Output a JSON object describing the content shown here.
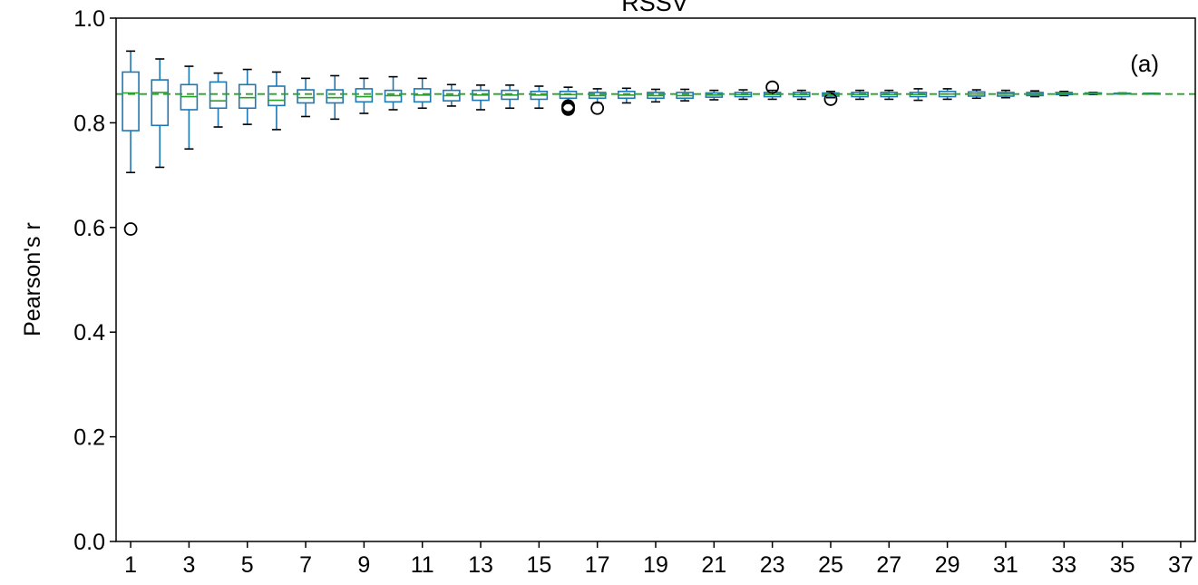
{
  "chart_data": {
    "type": "box",
    "title": "RSSV",
    "panel_label": "(a)",
    "xlabel": "",
    "ylabel": "Pearson's r",
    "ylim": [
      0.0,
      1.0
    ],
    "yticks": [
      "0.0",
      "0.2",
      "0.4",
      "0.6",
      "0.8",
      "1.0"
    ],
    "xlim": [
      0.5,
      37.5
    ],
    "xticks": [
      "1",
      "3",
      "5",
      "7",
      "9",
      "11",
      "13",
      "15",
      "17",
      "19",
      "21",
      "23",
      "25",
      "27",
      "29",
      "31",
      "33",
      "35",
      "37"
    ],
    "reference_line": {
      "value": 0.855,
      "style": "dashed",
      "color": "#2ca02c"
    },
    "box_color": "#1f77b4",
    "median_color": "#2ca02c",
    "whisker_color": "#000000",
    "grid": false,
    "boxes": [
      {
        "x": 1,
        "whislo": 0.705,
        "q1": 0.785,
        "med": 0.857,
        "q3": 0.897,
        "whishi": 0.937,
        "fliers": [
          0.597
        ]
      },
      {
        "x": 2,
        "whislo": 0.715,
        "q1": 0.795,
        "med": 0.858,
        "q3": 0.882,
        "whishi": 0.922,
        "fliers": []
      },
      {
        "x": 3,
        "whislo": 0.75,
        "q1": 0.825,
        "med": 0.85,
        "q3": 0.873,
        "whishi": 0.908,
        "fliers": []
      },
      {
        "x": 4,
        "whislo": 0.792,
        "q1": 0.828,
        "med": 0.842,
        "q3": 0.878,
        "whishi": 0.895,
        "fliers": []
      },
      {
        "x": 5,
        "whislo": 0.797,
        "q1": 0.828,
        "med": 0.848,
        "q3": 0.873,
        "whishi": 0.902,
        "fliers": []
      },
      {
        "x": 6,
        "whislo": 0.787,
        "q1": 0.833,
        "med": 0.843,
        "q3": 0.87,
        "whishi": 0.897,
        "fliers": []
      },
      {
        "x": 7,
        "whislo": 0.812,
        "q1": 0.838,
        "med": 0.848,
        "q3": 0.863,
        "whishi": 0.885,
        "fliers": []
      },
      {
        "x": 8,
        "whislo": 0.807,
        "q1": 0.838,
        "med": 0.848,
        "q3": 0.863,
        "whishi": 0.89,
        "fliers": []
      },
      {
        "x": 9,
        "whislo": 0.818,
        "q1": 0.84,
        "med": 0.85,
        "q3": 0.865,
        "whishi": 0.885,
        "fliers": []
      },
      {
        "x": 10,
        "whislo": 0.825,
        "q1": 0.84,
        "med": 0.852,
        "q3": 0.862,
        "whishi": 0.888,
        "fliers": []
      },
      {
        "x": 11,
        "whislo": 0.828,
        "q1": 0.84,
        "med": 0.853,
        "q3": 0.865,
        "whishi": 0.885,
        "fliers": []
      },
      {
        "x": 12,
        "whislo": 0.832,
        "q1": 0.842,
        "med": 0.852,
        "q3": 0.862,
        "whishi": 0.873,
        "fliers": []
      },
      {
        "x": 13,
        "whislo": 0.825,
        "q1": 0.843,
        "med": 0.853,
        "q3": 0.862,
        "whishi": 0.872,
        "fliers": []
      },
      {
        "x": 14,
        "whislo": 0.828,
        "q1": 0.845,
        "med": 0.853,
        "q3": 0.862,
        "whishi": 0.872,
        "fliers": []
      },
      {
        "x": 15,
        "whislo": 0.828,
        "q1": 0.845,
        "med": 0.853,
        "q3": 0.86,
        "whishi": 0.87,
        "fliers": []
      },
      {
        "x": 16,
        "whislo": 0.838,
        "q1": 0.847,
        "med": 0.854,
        "q3": 0.86,
        "whishi": 0.868,
        "fliers": [
          0.832,
          0.829,
          0.826
        ]
      },
      {
        "x": 17,
        "whislo": 0.838,
        "q1": 0.847,
        "med": 0.852,
        "q3": 0.858,
        "whishi": 0.865,
        "fliers": [
          0.828
        ]
      },
      {
        "x": 18,
        "whislo": 0.838,
        "q1": 0.847,
        "med": 0.853,
        "q3": 0.86,
        "whishi": 0.866,
        "fliers": []
      },
      {
        "x": 19,
        "whislo": 0.84,
        "q1": 0.847,
        "med": 0.852,
        "q3": 0.858,
        "whishi": 0.864,
        "fliers": []
      },
      {
        "x": 20,
        "whislo": 0.842,
        "q1": 0.847,
        "med": 0.852,
        "q3": 0.858,
        "whishi": 0.864,
        "fliers": []
      },
      {
        "x": 21,
        "whislo": 0.844,
        "q1": 0.849,
        "med": 0.853,
        "q3": 0.857,
        "whishi": 0.862,
        "fliers": []
      },
      {
        "x": 22,
        "whislo": 0.845,
        "q1": 0.85,
        "med": 0.854,
        "q3": 0.858,
        "whishi": 0.863,
        "fliers": []
      },
      {
        "x": 23,
        "whislo": 0.845,
        "q1": 0.85,
        "med": 0.854,
        "q3": 0.858,
        "whishi": 0.862,
        "fliers": [
          0.868
        ]
      },
      {
        "x": 24,
        "whislo": 0.845,
        "q1": 0.85,
        "med": 0.854,
        "q3": 0.858,
        "whishi": 0.862,
        "fliers": []
      },
      {
        "x": 25,
        "whislo": 0.848,
        "q1": 0.851,
        "med": 0.854,
        "q3": 0.857,
        "whishi": 0.86,
        "fliers": [
          0.845
        ]
      },
      {
        "x": 26,
        "whislo": 0.845,
        "q1": 0.85,
        "med": 0.854,
        "q3": 0.858,
        "whishi": 0.862,
        "fliers": []
      },
      {
        "x": 27,
        "whislo": 0.845,
        "q1": 0.85,
        "med": 0.854,
        "q3": 0.858,
        "whishi": 0.862,
        "fliers": []
      },
      {
        "x": 28,
        "whislo": 0.843,
        "q1": 0.85,
        "med": 0.854,
        "q3": 0.858,
        "whishi": 0.865,
        "fliers": []
      },
      {
        "x": 29,
        "whislo": 0.845,
        "q1": 0.85,
        "med": 0.855,
        "q3": 0.86,
        "whishi": 0.865,
        "fliers": []
      },
      {
        "x": 30,
        "whislo": 0.847,
        "q1": 0.851,
        "med": 0.855,
        "q3": 0.859,
        "whishi": 0.863,
        "fliers": []
      },
      {
        "x": 31,
        "whislo": 0.848,
        "q1": 0.851,
        "med": 0.855,
        "q3": 0.858,
        "whishi": 0.862,
        "fliers": []
      },
      {
        "x": 32,
        "whislo": 0.85,
        "q1": 0.852,
        "med": 0.855,
        "q3": 0.858,
        "whishi": 0.861,
        "fliers": []
      },
      {
        "x": 33,
        "whislo": 0.852,
        "q1": 0.854,
        "med": 0.856,
        "q3": 0.858,
        "whishi": 0.86,
        "fliers": []
      },
      {
        "x": 34,
        "whislo": 0.854,
        "q1": 0.855,
        "med": 0.856,
        "q3": 0.857,
        "whishi": 0.858,
        "fliers": []
      },
      {
        "x": 35,
        "whislo": 0.855,
        "q1": 0.8555,
        "med": 0.856,
        "q3": 0.8565,
        "whishi": 0.857,
        "fliers": []
      },
      {
        "x": 36,
        "whislo": 0.8555,
        "q1": 0.8557,
        "med": 0.856,
        "q3": 0.8563,
        "whishi": 0.8565,
        "fliers": []
      }
    ]
  }
}
